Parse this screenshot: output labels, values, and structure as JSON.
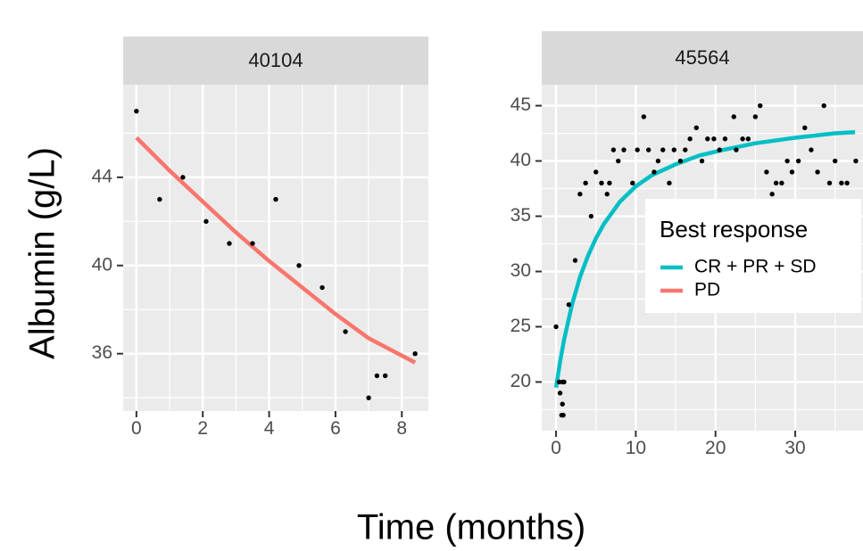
{
  "chart_data": {
    "type": "scatter",
    "xlabel": "Time (months)",
    "ylabel": "Albumin (g/L)",
    "legend": {
      "title": "Best response",
      "placement": "inside-right",
      "entries": [
        {
          "label": "CR + PR + SD",
          "color": "#00BFC4"
        },
        {
          "label": "PD",
          "color": "#F8766D"
        }
      ]
    },
    "panel_background": "#EBEBEB",
    "strip_background": "#D9D9D9",
    "grid": true,
    "point_color": "#000000",
    "panels": [
      {
        "id": "40104",
        "xlim": [
          -0.4,
          8.8
        ],
        "ylim": [
          33.4,
          48.2
        ],
        "xticks": [
          0,
          2,
          4,
          6,
          8
        ],
        "yticks": [
          36,
          40,
          44
        ],
        "points": [
          [
            0,
            47
          ],
          [
            0.7,
            43
          ],
          [
            1.4,
            44
          ],
          [
            2.1,
            42
          ],
          [
            2.8,
            41
          ],
          [
            3.5,
            41
          ],
          [
            4.2,
            43
          ],
          [
            4.9,
            40
          ],
          [
            5.6,
            39
          ],
          [
            6.3,
            37
          ],
          [
            7.0,
            34
          ],
          [
            7.25,
            35
          ],
          [
            7.5,
            35
          ],
          [
            8.4,
            36
          ]
        ],
        "fit": {
          "group": "PD",
          "color": "#F8766D",
          "points": [
            [
              0,
              45.8
            ],
            [
              1,
              44.3
            ],
            [
              2,
              42.9
            ],
            [
              3,
              41.5
            ],
            [
              4,
              40.2
            ],
            [
              5,
              39.0
            ],
            [
              6,
              37.8
            ],
            [
              7,
              36.7
            ],
            [
              8.4,
              35.6
            ]
          ]
        }
      },
      {
        "id": "45564",
        "xlim": [
          -1.8,
          38.5
        ],
        "ylim": [
          15.6,
          46.9
        ],
        "xticks": [
          0,
          10,
          20,
          30
        ],
        "yticks": [
          20,
          25,
          30,
          35,
          40,
          45
        ],
        "points": [
          [
            0,
            25
          ],
          [
            0.4,
            20
          ],
          [
            0.5,
            19
          ],
          [
            0.7,
            17
          ],
          [
            0.9,
            17
          ],
          [
            0.8,
            18
          ],
          [
            0.8,
            20
          ],
          [
            1,
            20
          ],
          [
            1.6,
            27
          ],
          [
            2.4,
            31
          ],
          [
            3,
            37
          ],
          [
            3.7,
            38
          ],
          [
            4.4,
            35
          ],
          [
            5,
            39
          ],
          [
            5.7,
            38
          ],
          [
            6.4,
            37
          ],
          [
            6.7,
            38
          ],
          [
            7.2,
            41
          ],
          [
            7.8,
            40
          ],
          [
            8.5,
            41
          ],
          [
            9.6,
            38
          ],
          [
            10.2,
            41
          ],
          [
            11,
            44
          ],
          [
            11.6,
            41
          ],
          [
            12.3,
            39
          ],
          [
            12.8,
            40
          ],
          [
            13.4,
            41
          ],
          [
            14.2,
            38
          ],
          [
            14.8,
            41
          ],
          [
            15.6,
            40
          ],
          [
            16.2,
            41
          ],
          [
            16.8,
            42
          ],
          [
            17.6,
            43
          ],
          [
            18.3,
            40
          ],
          [
            19,
            42
          ],
          [
            19.8,
            42
          ],
          [
            20.5,
            41
          ],
          [
            21.2,
            42
          ],
          [
            22.3,
            44
          ],
          [
            22.6,
            41
          ],
          [
            23.4,
            42
          ],
          [
            24.1,
            42
          ],
          [
            25,
            44
          ],
          [
            25.6,
            45
          ],
          [
            26.4,
            39
          ],
          [
            27.1,
            37
          ],
          [
            27.6,
            38
          ],
          [
            28.3,
            38
          ],
          [
            29,
            40
          ],
          [
            29.6,
            39
          ],
          [
            30.4,
            40
          ],
          [
            31.2,
            43
          ],
          [
            32,
            41
          ],
          [
            32.8,
            39
          ],
          [
            33.6,
            45
          ],
          [
            34.3,
            38
          ],
          [
            35,
            40
          ],
          [
            35.8,
            38
          ],
          [
            36.5,
            38
          ],
          [
            37.6,
            40
          ]
        ],
        "fit": {
          "group": "CR + PR + SD",
          "color": "#00BFC4",
          "points": [
            [
              0,
              19.5
            ],
            [
              0.5,
              21.8
            ],
            [
              1,
              23.8
            ],
            [
              2,
              27.0
            ],
            [
              3,
              29.5
            ],
            [
              4,
              31.4
            ],
            [
              5,
              33.0
            ],
            [
              6,
              34.3
            ],
            [
              8,
              36.3
            ],
            [
              10,
              37.7
            ],
            [
              12,
              38.7
            ],
            [
              15,
              39.7
            ],
            [
              18,
              40.5
            ],
            [
              21,
              41.0
            ],
            [
              25,
              41.6
            ],
            [
              30,
              42.1
            ],
            [
              35,
              42.5
            ],
            [
              37.5,
              42.6
            ]
          ]
        }
      }
    ]
  }
}
